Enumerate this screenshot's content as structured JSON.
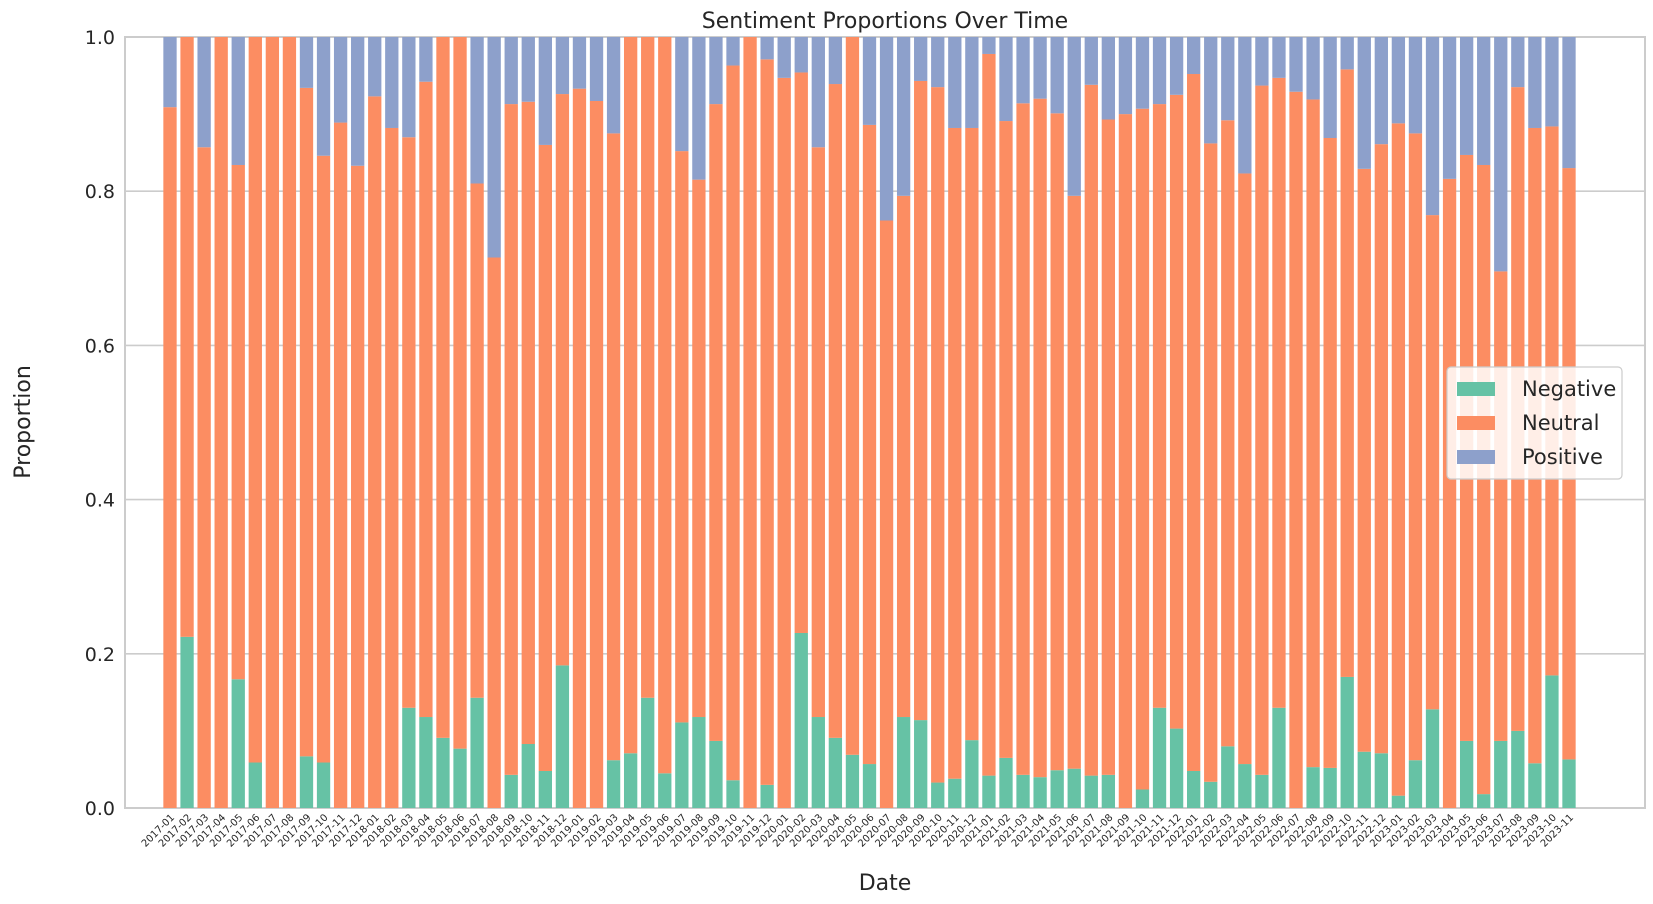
{
  "chart_data": {
    "type": "bar",
    "stacked": true,
    "title": "Sentiment Proportions Over Time",
    "xlabel": "Date",
    "ylabel": "Proportion",
    "ylim": [
      0,
      1
    ],
    "yticks": [
      "0.0",
      "0.2",
      "0.4",
      "0.6",
      "0.8",
      "1.0"
    ],
    "grid": true,
    "legend_position": "center-right",
    "categories": [
      "2017-01",
      "2017-02",
      "2017-03",
      "2017-04",
      "2017-05",
      "2017-06",
      "2017-07",
      "2017-08",
      "2017-09",
      "2017-10",
      "2017-11",
      "2017-12",
      "2018-01",
      "2018-02",
      "2018-03",
      "2018-04",
      "2018-05",
      "2018-06",
      "2018-07",
      "2018-08",
      "2018-09",
      "2018-10",
      "2018-11",
      "2018-12",
      "2019-01",
      "2019-02",
      "2019-03",
      "2019-04",
      "2019-05",
      "2019-06",
      "2019-07",
      "2019-08",
      "2019-09",
      "2019-10",
      "2019-11",
      "2019-12",
      "2020-01",
      "2020-02",
      "2020-03",
      "2020-04",
      "2020-05",
      "2020-06",
      "2020-07",
      "2020-08",
      "2020-09",
      "2020-10",
      "2020-11",
      "2020-12",
      "2021-01",
      "2021-02",
      "2021-03",
      "2021-04",
      "2021-05",
      "2021-06",
      "2021-07",
      "2021-08",
      "2021-09",
      "2021-10",
      "2021-11",
      "2021-12",
      "2022-01",
      "2022-02",
      "2022-03",
      "2022-04",
      "2022-05",
      "2022-06",
      "2022-07",
      "2022-08",
      "2022-09",
      "2022-10",
      "2022-11",
      "2022-12",
      "2023-01",
      "2023-02",
      "2023-03",
      "2023-04",
      "2023-05",
      "2023-06",
      "2023-07",
      "2023-08",
      "2023-09",
      "2023-10",
      "2023-11"
    ],
    "series": [
      {
        "name": "Negative",
        "color": "#66c2a5",
        "values": [
          0,
          0.222,
          0,
          0,
          0.167,
          0.059,
          0,
          0,
          0.067,
          0.059,
          0,
          0,
          0,
          0,
          0.13,
          0.118,
          0.091,
          0.077,
          0.143,
          0,
          0.043,
          0.083,
          0.048,
          0.185,
          0,
          0,
          0.062,
          0.071,
          0.143,
          0.045,
          0.111,
          0.118,
          0.087,
          0.036,
          0,
          0.03,
          0,
          0.227,
          0.118,
          0.091,
          0.069,
          0.057,
          0,
          0.118,
          0.114,
          0.033,
          0.038,
          0.088,
          0.042,
          0.065,
          0.043,
          0.04,
          0.049,
          0.051,
          0.042,
          0.043,
          0,
          0.024,
          0.13,
          0.103,
          0.048,
          0.034,
          0.08,
          0.057,
          0.043,
          0.13,
          0,
          0.053,
          0.052,
          0.17,
          0.073,
          0.071,
          0.016,
          0.062,
          0.128,
          0,
          0.087,
          0.018,
          0.087,
          0.1,
          0.058,
          0.172,
          0.063
        ]
      },
      {
        "name": "Neutral",
        "color": "#fc8d62",
        "values": [
          0.909,
          0.778,
          0.857,
          1.0,
          0.667,
          0.941,
          1.0,
          1.0,
          0.867,
          0.787,
          0.889,
          0.833,
          0.923,
          0.882,
          0.74,
          0.824,
          0.909,
          0.923,
          0.667,
          0.714,
          0.87,
          0.833,
          0.812,
          0.741,
          0.933,
          0.917,
          0.813,
          0.929,
          0.857,
          0.955,
          0.741,
          0.697,
          0.826,
          0.927,
          1.0,
          0.941,
          0.947,
          0.727,
          0.739,
          0.848,
          0.931,
          0.829,
          0.762,
          0.676,
          0.829,
          0.902,
          0.844,
          0.794,
          0.936,
          0.826,
          0.871,
          0.88,
          0.852,
          0.743,
          0.896,
          0.85,
          0.9,
          0.883,
          0.783,
          0.822,
          0.904,
          0.828,
          0.812,
          0.766,
          0.894,
          0.817,
          0.929,
          0.866,
          0.817,
          0.788,
          0.756,
          0.79,
          0.872,
          0.813,
          0.641,
          0.816,
          0.76,
          0.816,
          0.609,
          0.835,
          0.824,
          0.712,
          0.767
        ]
      },
      {
        "name": "Positive",
        "color": "#8da0cb",
        "values": [
          0.091,
          0,
          0.143,
          0,
          0.166,
          0,
          0,
          0,
          0.066,
          0.154,
          0.111,
          0.167,
          0.077,
          0.118,
          0.13,
          0.058,
          0,
          0,
          0.19,
          0.286,
          0.087,
          0.084,
          0.14,
          0.074,
          0.067,
          0.083,
          0.125,
          0,
          0,
          0,
          0.148,
          0.185,
          0.087,
          0.037,
          0,
          0.029,
          0.053,
          0.046,
          0.143,
          0.061,
          0,
          0.114,
          0.238,
          0.206,
          0.057,
          0.065,
          0.118,
          0.118,
          0.022,
          0.109,
          0.086,
          0.08,
          0.099,
          0.206,
          0.062,
          0.107,
          0.1,
          0.093,
          0.087,
          0.075,
          0.048,
          0.138,
          0.108,
          0.177,
          0.063,
          0.053,
          0.071,
          0.081,
          0.131,
          0.042,
          0.171,
          0.139,
          0.112,
          0.125,
          0.231,
          0.184,
          0.153,
          0.166,
          0.304,
          0.065,
          0.118,
          0.116,
          0.17
        ]
      }
    ]
  }
}
